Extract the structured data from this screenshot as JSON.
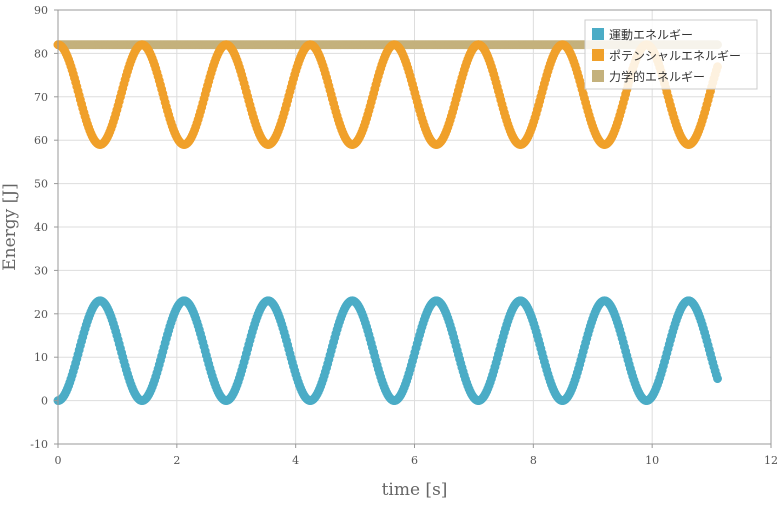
{
  "chart_data": {
    "type": "scatter",
    "title": "",
    "xlabel": "time [s]",
    "ylabel": "Energy [J]",
    "xlim": [
      0,
      12
    ],
    "ylim": [
      -10,
      90
    ],
    "xticks": [
      "0",
      "2",
      "4",
      "6",
      "8",
      "10",
      "12"
    ],
    "yticks": [
      "-10",
      "0",
      "10",
      "20",
      "30",
      "40",
      "50",
      "60",
      "70",
      "80",
      "90"
    ],
    "grid": true,
    "legend_position": "top-right",
    "total_energy": 82,
    "oscillation_period": 1.415,
    "t_max": 11.1,
    "series": [
      {
        "name": "運動エネルギー",
        "color": "#4bacc6",
        "min": 0,
        "max": 23,
        "phase": "starts-at-min"
      },
      {
        "name": "ポテンシャルエネルギー",
        "color": "#f0a02a",
        "min": 59,
        "max": 82,
        "phase": "starts-at-max"
      },
      {
        "name": "力学的エネルギー",
        "color": "#c4b17c",
        "min": 82,
        "max": 82,
        "phase": "constant"
      }
    ]
  }
}
